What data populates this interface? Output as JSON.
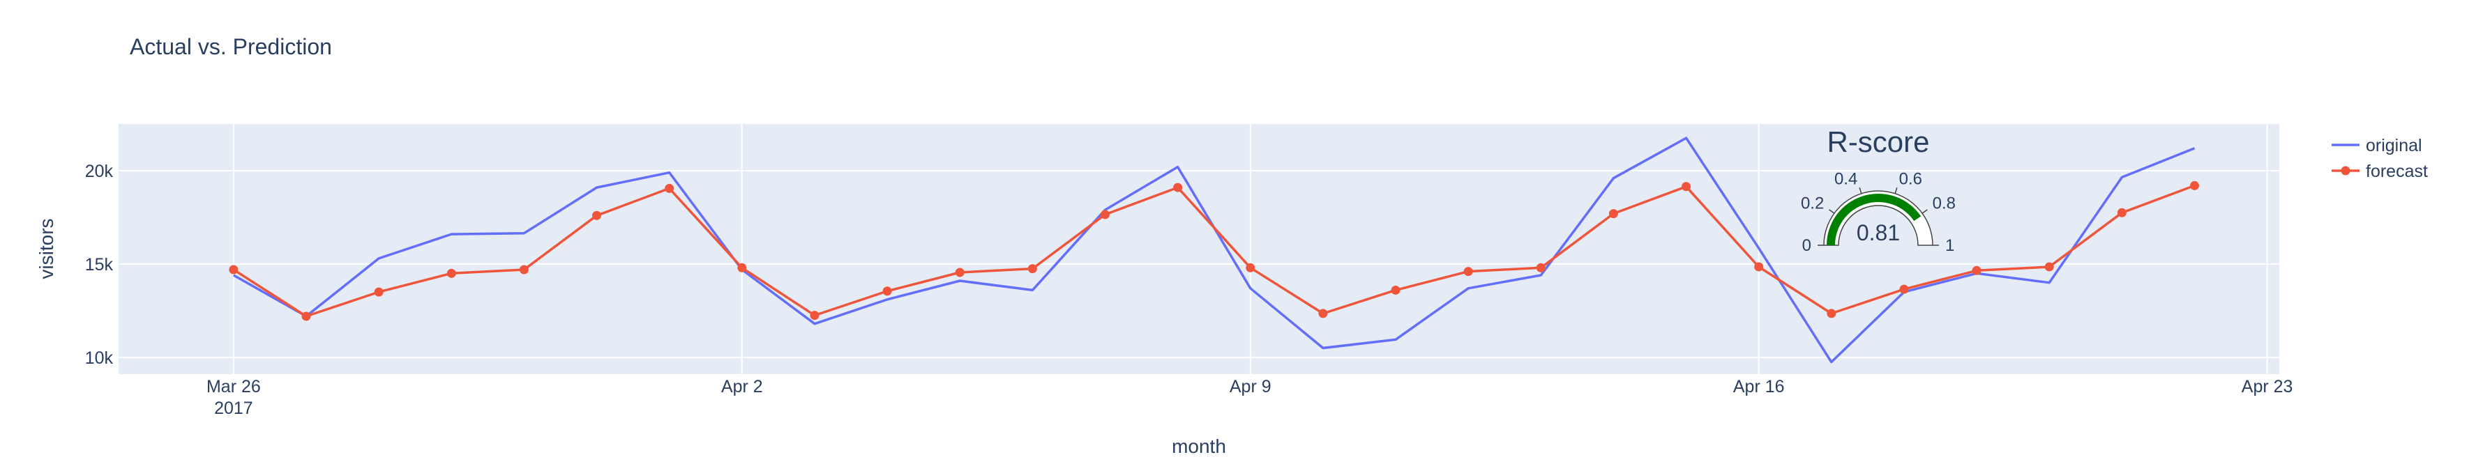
{
  "chart_data": {
    "type": "line",
    "title": "Actual vs. Prediction",
    "xlabel": "month",
    "ylabel": "visitors",
    "x": [
      "2017-03-26",
      "2017-03-27",
      "2017-03-28",
      "2017-03-29",
      "2017-03-30",
      "2017-03-31",
      "2017-04-01",
      "2017-04-02",
      "2017-04-03",
      "2017-04-04",
      "2017-04-05",
      "2017-04-06",
      "2017-04-07",
      "2017-04-08",
      "2017-04-09",
      "2017-04-10",
      "2017-04-11",
      "2017-04-12",
      "2017-04-13",
      "2017-04-14",
      "2017-04-15",
      "2017-04-16",
      "2017-04-17",
      "2017-04-18",
      "2017-04-19",
      "2017-04-20",
      "2017-04-21",
      "2017-04-22"
    ],
    "xticks": [
      {
        "date": "2017-03-26",
        "label": "Mar 26",
        "sublabel": "2017"
      },
      {
        "date": "2017-04-02",
        "label": "Apr 2",
        "sublabel": ""
      },
      {
        "date": "2017-04-09",
        "label": "Apr 9",
        "sublabel": ""
      },
      {
        "date": "2017-04-16",
        "label": "Apr 16",
        "sublabel": ""
      },
      {
        "date": "2017-04-23",
        "label": "Apr 23",
        "sublabel": ""
      }
    ],
    "xlim": [
      "2017-03-24T10:00",
      "2017-04-23T04:00"
    ],
    "ylim": [
      9100,
      22500
    ],
    "yticks": [
      {
        "value": 10000,
        "label": "10k"
      },
      {
        "value": 15000,
        "label": "15k"
      },
      {
        "value": 20000,
        "label": "20k"
      }
    ],
    "grid": true,
    "legend_position": "top-right",
    "series": [
      {
        "name": "original",
        "color": "#636efa",
        "mode": "lines",
        "values": [
          14400,
          12200,
          15300,
          16600,
          16650,
          19100,
          19900,
          14700,
          11800,
          13100,
          14100,
          13600,
          17900,
          20200,
          13700,
          10500,
          10950,
          13700,
          14400,
          19600,
          21750,
          15850,
          9750,
          13500,
          14500,
          14000,
          19650,
          21200
        ]
      },
      {
        "name": "forecast",
        "color": "#ef553b",
        "mode": "lines+markers",
        "values": [
          14700,
          12200,
          13500,
          14500,
          14700,
          17600,
          19050,
          14800,
          12250,
          13550,
          14550,
          14750,
          17650,
          19100,
          14800,
          12350,
          13600,
          14600,
          14800,
          17700,
          19150,
          14850,
          12350,
          13650,
          14650,
          14850,
          17750,
          19200
        ]
      }
    ],
    "indicator": {
      "title": "R-score",
      "value": 0.81,
      "value_label": "0.81",
      "range": [
        0,
        1
      ],
      "tick_labels": [
        "0",
        "0.2",
        "0.4",
        "0.6",
        "0.8",
        "1"
      ],
      "bar_color": "#008000"
    }
  }
}
